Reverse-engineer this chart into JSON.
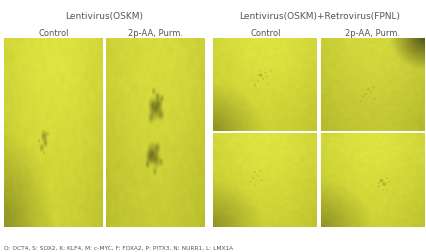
{
  "title_left": "Lentivirus(OSKM)",
  "title_right": "Lentivirus(OSKM)+Retrovirus(FPNL)",
  "col_labels_left": [
    "Control",
    "2p-AA, Purm."
  ],
  "col_labels_right": [
    "Control",
    "2p-AA, Purm."
  ],
  "footnote": "O: OCT4, S: SOX2, K: KLF4, M: c-MYC, F: FOXA2, P: PITX3, N: NURR1, L: LMX1A",
  "bg_color": "#ffffff",
  "panel_bg_rgb": [
    0.78,
    0.8,
    0.2
  ],
  "separator_line_color": "#aaaaaa",
  "label_color": "#555555",
  "title_underline_color": "#aaaaaa"
}
